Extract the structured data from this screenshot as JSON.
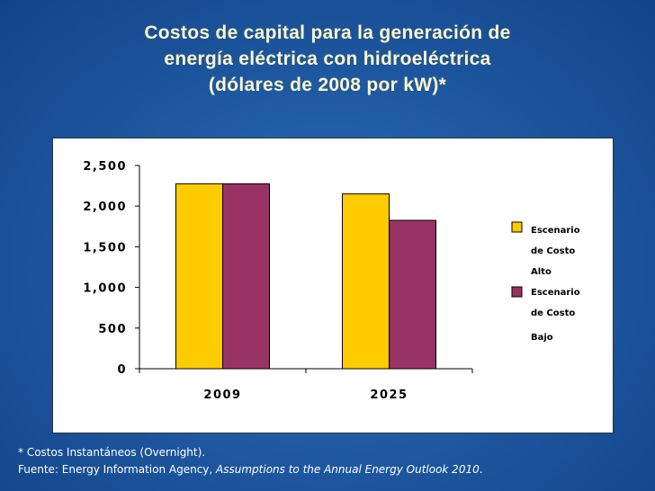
{
  "title": {
    "line1": "Costos de capital para la generación de",
    "line2": "energía eléctrica con hidroeléctrica",
    "line3": "(dólares de 2008 por kW)*"
  },
  "chart_data": {
    "type": "bar",
    "categories": [
      "2009",
      "2025"
    ],
    "series": [
      {
        "name": "Escenario de Costo Alto",
        "values": [
          2275,
          2150
        ],
        "color": "#ffcc00"
      },
      {
        "name": "Escenario de Costo Bajo",
        "values": [
          2275,
          1825
        ],
        "color": "#993366"
      }
    ],
    "yticks": [
      "0",
      "500",
      "1,000",
      "1,500",
      "2,000",
      "2,500"
    ],
    "ylim": [
      0,
      2500
    ],
    "grid": false,
    "legend_position": "right"
  },
  "legend": {
    "high": [
      "Escenario",
      "de Costo",
      "Alto"
    ],
    "low": [
      "Escenario",
      "de Costo",
      "Bajo"
    ]
  },
  "footer": {
    "note": "* Costos Instantáneos (Overnight).",
    "source_prefix": "Fuente: Energy Information Agency, ",
    "source_title": "Assumptions to the Annual Energy Outlook 2010",
    "source_suffix": "."
  }
}
